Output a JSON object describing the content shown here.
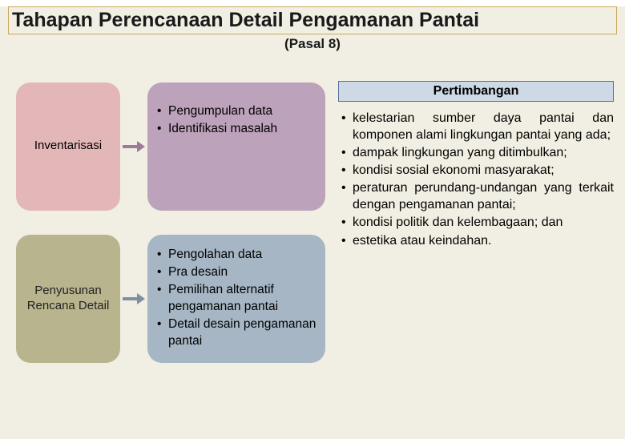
{
  "colors": {
    "page_bg": "#f1eee3",
    "title_border": "#c9a85a",
    "title_text": "#1a1a1a",
    "stage1_bg": "#e3b7b7",
    "stage2_bg": "#b8b48e",
    "act1_bg": "#bda2bb",
    "act2_bg": "#a6b6c4",
    "arrow1": "#9c7a98",
    "arrow2": "#7e90a0",
    "pert_bg": "#cdd9e4",
    "pert_border": "#5a6fa0",
    "text": "#222222"
  },
  "title": "Tahapan Perencanaan Detail Pengamanan Pantai",
  "subtitle": "(Pasal 8)",
  "stages": [
    {
      "label": "Inventarisasi"
    },
    {
      "label": "Penyusunan Rencana Detail"
    }
  ],
  "activities": [
    [
      "Pengumpulan data",
      "Identifikasi masalah"
    ],
    [
      "Pengolahan data",
      "Pra desain",
      "Pemilihan alternatif pengamanan pantai",
      "Detail desain pengamanan pantai"
    ]
  ],
  "pertimbangan": {
    "header": "Pertimbangan",
    "items": [
      "kelestarian sumber daya pantai dan komponen alami lingkungan pantai yang ada;",
      "dampak lingkungan yang ditimbulkan;",
      "kondisi sosial ekonomi masyarakat;",
      "peraturan perundang-undangan yang terkait dengan pengamanan pantai;",
      "kondisi politik dan kelembagaan; dan",
      "estetika atau keindahan."
    ]
  }
}
